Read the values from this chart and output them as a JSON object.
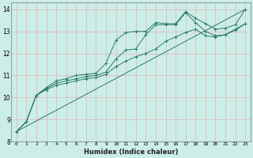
{
  "xlabel": "Humidex (Indice chaleur)",
  "bg_color": "#cceee8",
  "grid_color": "#e8b0b0",
  "line_color": "#2a7a6a",
  "xlim": [
    -0.5,
    23.5
  ],
  "ylim": [
    8,
    14.3
  ],
  "xticks": [
    0,
    1,
    2,
    3,
    4,
    5,
    6,
    7,
    8,
    9,
    10,
    11,
    12,
    13,
    14,
    15,
    16,
    17,
    18,
    19,
    20,
    21,
    22,
    23
  ],
  "yticks": [
    8,
    9,
    10,
    11,
    12,
    13,
    14
  ],
  "series": [
    {
      "x": [
        0,
        1,
        2,
        3,
        4,
        5,
        6,
        7,
        8,
        9,
        10,
        11,
        12,
        13,
        14,
        15,
        16,
        17,
        18,
        19,
        20,
        21,
        22,
        23
      ],
      "y": [
        8.45,
        8.9,
        10.1,
        10.45,
        10.75,
        10.85,
        11.0,
        11.05,
        11.1,
        11.55,
        12.6,
        12.95,
        13.0,
        13.0,
        13.4,
        13.35,
        13.35,
        13.9,
        13.6,
        13.35,
        13.1,
        13.15,
        13.3,
        14.0
      ],
      "marker": true
    },
    {
      "x": [
        0,
        1,
        2,
        3,
        4,
        5,
        6,
        7,
        8,
        9,
        10,
        11,
        12,
        13,
        14,
        15,
        16,
        17,
        18,
        19,
        20,
        21,
        22,
        23
      ],
      "y": [
        8.45,
        8.9,
        10.1,
        10.4,
        10.65,
        10.75,
        10.85,
        10.95,
        11.0,
        11.15,
        11.75,
        12.15,
        12.2,
        12.85,
        13.3,
        13.3,
        13.3,
        13.85,
        13.4,
        13.0,
        12.8,
        12.85,
        13.1,
        13.35
      ],
      "marker": true
    },
    {
      "x": [
        0,
        1,
        2,
        3,
        4,
        5,
        6,
        7,
        8,
        9,
        10,
        11,
        12,
        13,
        14,
        15,
        16,
        17,
        18,
        19,
        20,
        21,
        22,
        23
      ],
      "y": [
        8.45,
        8.9,
        10.1,
        10.35,
        10.55,
        10.65,
        10.75,
        10.85,
        10.9,
        11.05,
        11.4,
        11.65,
        11.85,
        12.0,
        12.2,
        12.55,
        12.75,
        12.95,
        13.1,
        12.8,
        12.75,
        12.85,
        13.05,
        13.35
      ],
      "marker": true
    },
    {
      "x": [
        0,
        23
      ],
      "y": [
        8.45,
        14.0
      ],
      "marker": false
    }
  ]
}
